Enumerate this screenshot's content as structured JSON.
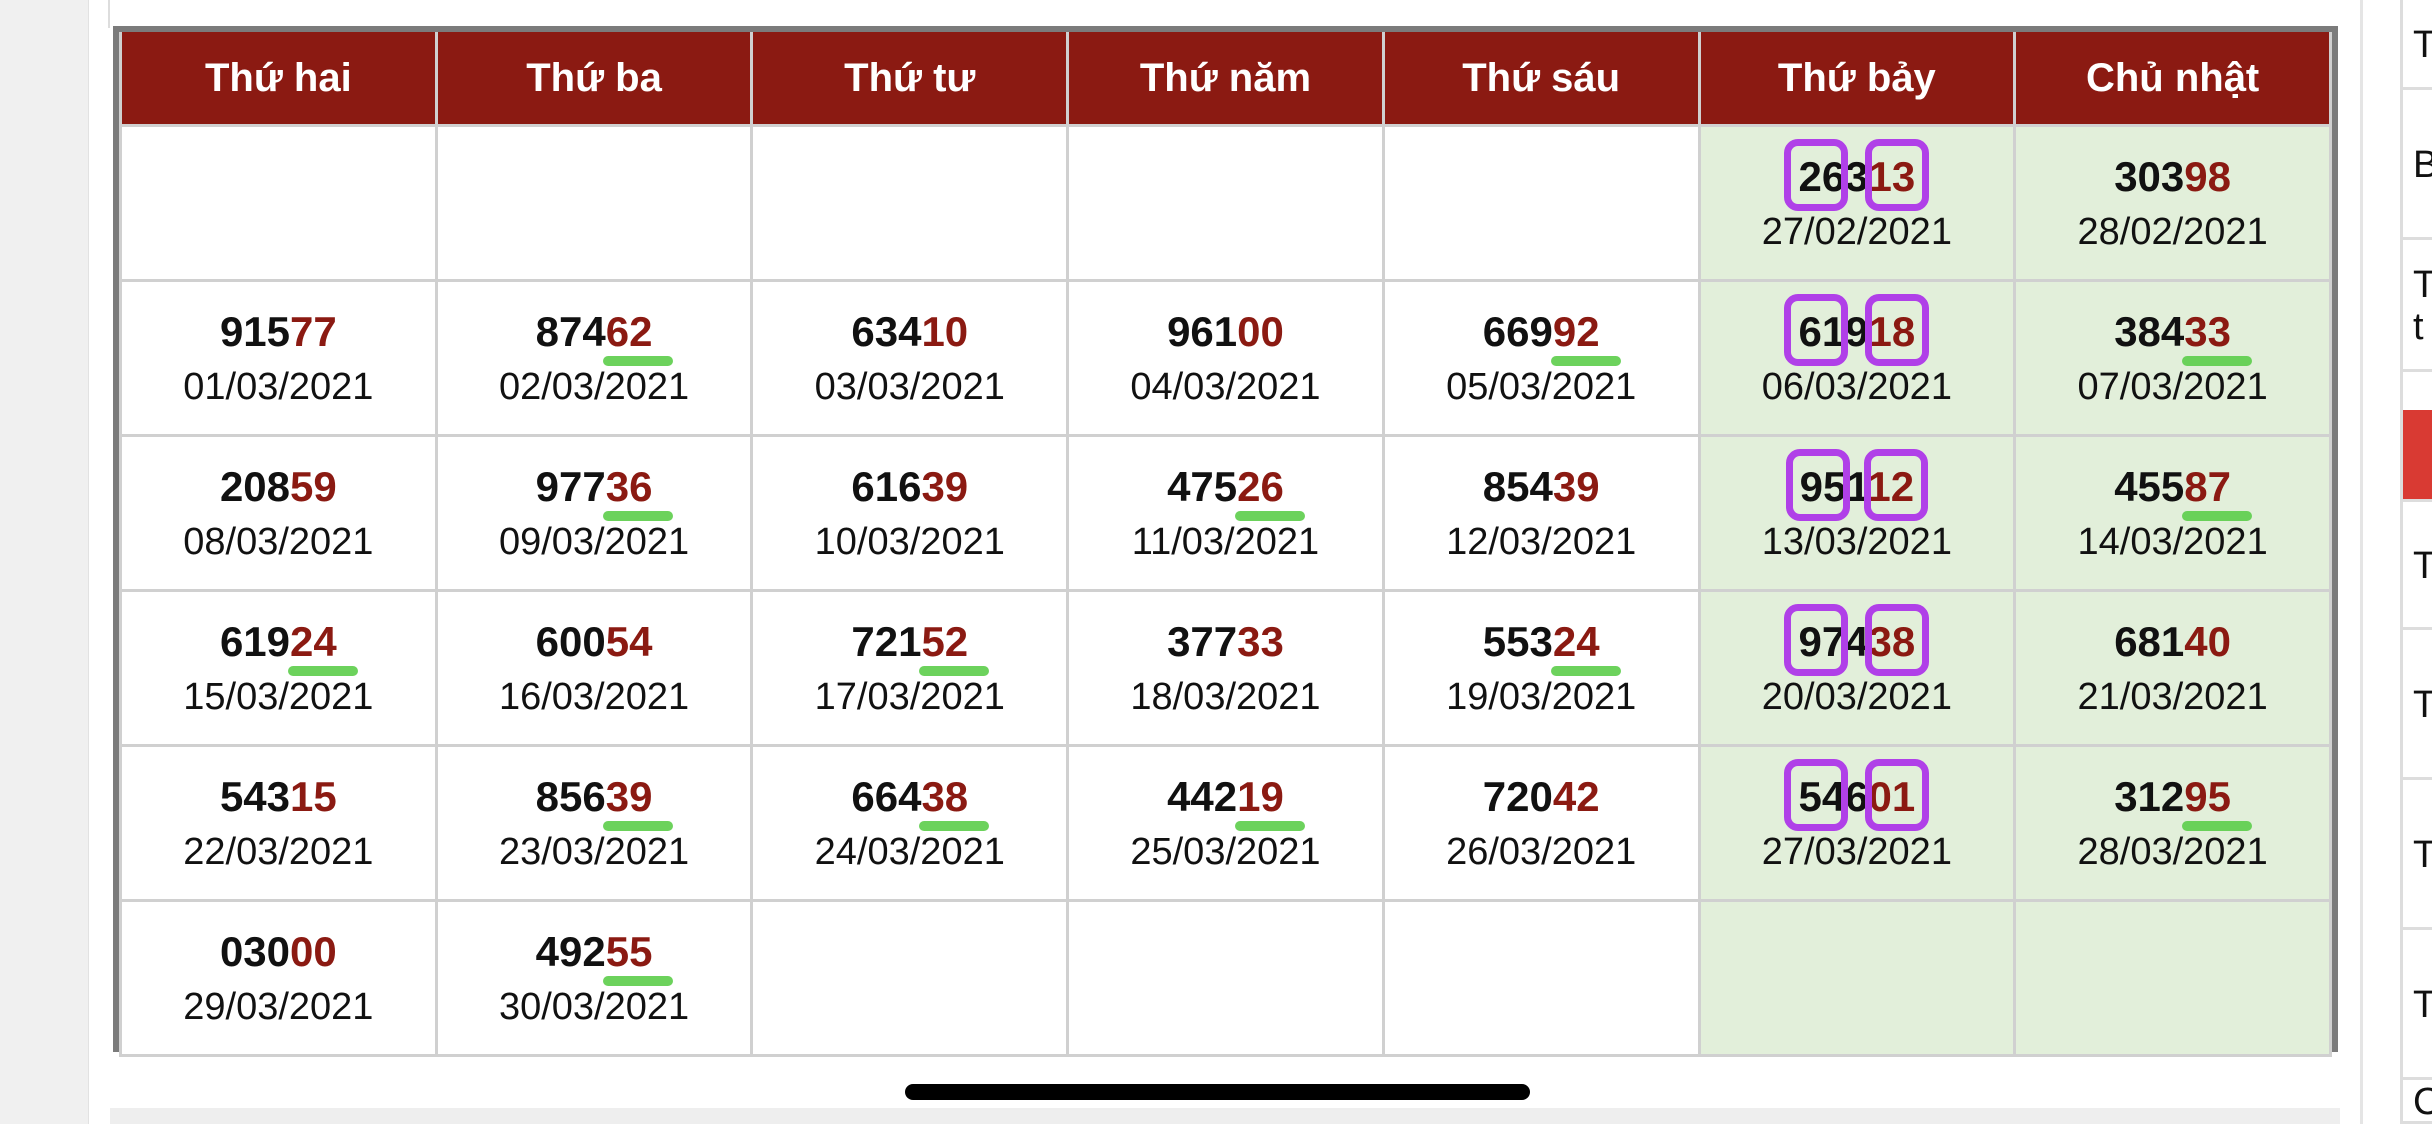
{
  "calendar": {
    "headers": [
      "Thứ hai",
      "Thứ ba",
      "Thứ tư",
      "Thứ năm",
      "Thứ sáu",
      "Thứ bảy",
      "Chủ nhật"
    ],
    "colors": {
      "header_bg": "#8b1a12",
      "tail_digits": "#8b1a12",
      "weekend_bg": "#e2efda"
    },
    "weeks": [
      [
        null,
        null,
        null,
        null,
        null,
        {
          "number": "26313",
          "date": "27/02/2021"
        },
        {
          "number": "30398",
          "date": "28/02/2021"
        }
      ],
      [
        {
          "number": "91577",
          "date": "01/03/2021"
        },
        {
          "number": "87462",
          "date": "02/03/2021"
        },
        {
          "number": "63410",
          "date": "03/03/2021"
        },
        {
          "number": "96100",
          "date": "04/03/2021"
        },
        {
          "number": "66992",
          "date": "05/03/2021"
        },
        {
          "number": "61918",
          "date": "06/03/2021"
        },
        {
          "number": "38433",
          "date": "07/03/2021"
        }
      ],
      [
        {
          "number": "20859",
          "date": "08/03/2021"
        },
        {
          "number": "97736",
          "date": "09/03/2021"
        },
        {
          "number": "61639",
          "date": "10/03/2021"
        },
        {
          "number": "47526",
          "date": "11/03/2021"
        },
        {
          "number": "85439",
          "date": "12/03/2021"
        },
        {
          "number": "95112",
          "date": "13/03/2021"
        },
        {
          "number": "45587",
          "date": "14/03/2021"
        }
      ],
      [
        {
          "number": "61924",
          "date": "15/03/2021"
        },
        {
          "number": "60054",
          "date": "16/03/2021"
        },
        {
          "number": "72152",
          "date": "17/03/2021"
        },
        {
          "number": "37733",
          "date": "18/03/2021"
        },
        {
          "number": "55324",
          "date": "19/03/2021"
        },
        {
          "number": "97438",
          "date": "20/03/2021"
        },
        {
          "number": "68140",
          "date": "21/03/2021"
        }
      ],
      [
        {
          "number": "54315",
          "date": "22/03/2021"
        },
        {
          "number": "85639",
          "date": "23/03/2021"
        },
        {
          "number": "66438",
          "date": "24/03/2021"
        },
        {
          "number": "44219",
          "date": "25/03/2021"
        },
        {
          "number": "72042",
          "date": "26/03/2021"
        },
        {
          "number": "54601",
          "date": "27/03/2021"
        },
        {
          "number": "31295",
          "date": "28/03/2021"
        }
      ],
      [
        {
          "number": "03000",
          "date": "29/03/2021"
        },
        {
          "number": "49255",
          "date": "30/03/2021"
        },
        null,
        null,
        null,
        null,
        null
      ]
    ],
    "green_marked_dates": [
      "02/03/2021",
      "05/03/2021",
      "07/03/2021",
      "09/03/2021",
      "11/03/2021",
      "14/03/2021",
      "15/03/2021",
      "17/03/2021",
      "19/03/2021",
      "23/03/2021",
      "24/03/2021",
      "25/03/2021",
      "28/03/2021",
      "30/03/2021"
    ],
    "purple_marked_dates": [
      "27/02/2021",
      "06/03/2021",
      "13/03/2021",
      "20/03/2021",
      "27/03/2021"
    ]
  },
  "sidebar": {
    "items": [
      "T",
      "B",
      "T t",
      "",
      "T",
      "T",
      "T",
      "T",
      "C"
    ]
  }
}
